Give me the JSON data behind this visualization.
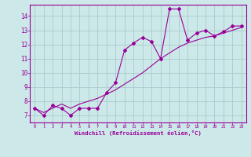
{
  "xlabel": "Windchill (Refroidissement éolien,°C)",
  "x_values": [
    0,
    1,
    2,
    3,
    4,
    5,
    6,
    7,
    8,
    9,
    10,
    11,
    12,
    13,
    14,
    15,
    16,
    17,
    18,
    19,
    20,
    21,
    22,
    23
  ],
  "jagged_y": [
    7.5,
    7.0,
    7.7,
    7.5,
    7.0,
    7.5,
    7.5,
    7.5,
    8.6,
    9.3,
    11.6,
    12.1,
    12.5,
    12.2,
    11.0,
    14.5,
    14.5,
    12.3,
    12.8,
    13.0,
    12.6,
    12.9,
    13.3,
    13.3
  ],
  "smooth_y": [
    7.5,
    7.2,
    7.5,
    7.8,
    7.5,
    7.8,
    8.0,
    8.2,
    8.5,
    8.8,
    9.2,
    9.6,
    10.0,
    10.5,
    11.0,
    11.4,
    11.8,
    12.1,
    12.3,
    12.5,
    12.6,
    12.8,
    13.0,
    13.2
  ],
  "line_color": "#990099",
  "bg_color": "#cce8e8",
  "grid_color": "#aacccc",
  "ylim": [
    6.5,
    14.8
  ],
  "yticks": [
    7,
    8,
    9,
    10,
    11,
    12,
    13,
    14
  ],
  "xlim": [
    -0.5,
    23.5
  ],
  "xticks": [
    0,
    1,
    2,
    3,
    4,
    5,
    6,
    7,
    8,
    9,
    10,
    11,
    12,
    13,
    14,
    15,
    16,
    17,
    18,
    19,
    20,
    21,
    22,
    23
  ]
}
